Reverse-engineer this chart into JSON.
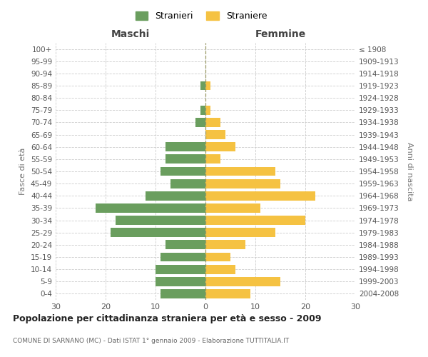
{
  "age_groups": [
    "0-4",
    "5-9",
    "10-14",
    "15-19",
    "20-24",
    "25-29",
    "30-34",
    "35-39",
    "40-44",
    "45-49",
    "50-54",
    "55-59",
    "60-64",
    "65-69",
    "70-74",
    "75-79",
    "80-84",
    "85-89",
    "90-94",
    "95-99",
    "100+"
  ],
  "birth_years": [
    "2004-2008",
    "1999-2003",
    "1994-1998",
    "1989-1993",
    "1984-1988",
    "1979-1983",
    "1974-1978",
    "1969-1973",
    "1964-1968",
    "1959-1963",
    "1954-1958",
    "1949-1953",
    "1944-1948",
    "1939-1943",
    "1934-1938",
    "1929-1933",
    "1924-1928",
    "1919-1923",
    "1914-1918",
    "1909-1913",
    "≤ 1908"
  ],
  "maschi": [
    9,
    10,
    10,
    9,
    8,
    19,
    18,
    22,
    12,
    7,
    9,
    8,
    8,
    0,
    2,
    1,
    0,
    1,
    0,
    0,
    0
  ],
  "femmine": [
    9,
    15,
    6,
    5,
    8,
    14,
    20,
    11,
    22,
    15,
    14,
    3,
    6,
    4,
    3,
    1,
    0,
    1,
    0,
    0,
    0
  ],
  "color_maschi": "#6a9e5e",
  "color_femmine": "#f5c242",
  "title": "Popolazione per cittadinanza straniera per età e sesso - 2009",
  "subtitle": "COMUNE DI SARNANO (MC) - Dati ISTAT 1° gennaio 2009 - Elaborazione TUTTITALIA.IT",
  "label_maschi": "Stranieri",
  "label_femmine": "Straniere",
  "xlabel_left": "Maschi",
  "xlabel_right": "Femmine",
  "ylabel_left": "Fasce di età",
  "ylabel_right": "Anni di nascita",
  "xlim": 30,
  "background_color": "#ffffff",
  "grid_color": "#cccccc"
}
